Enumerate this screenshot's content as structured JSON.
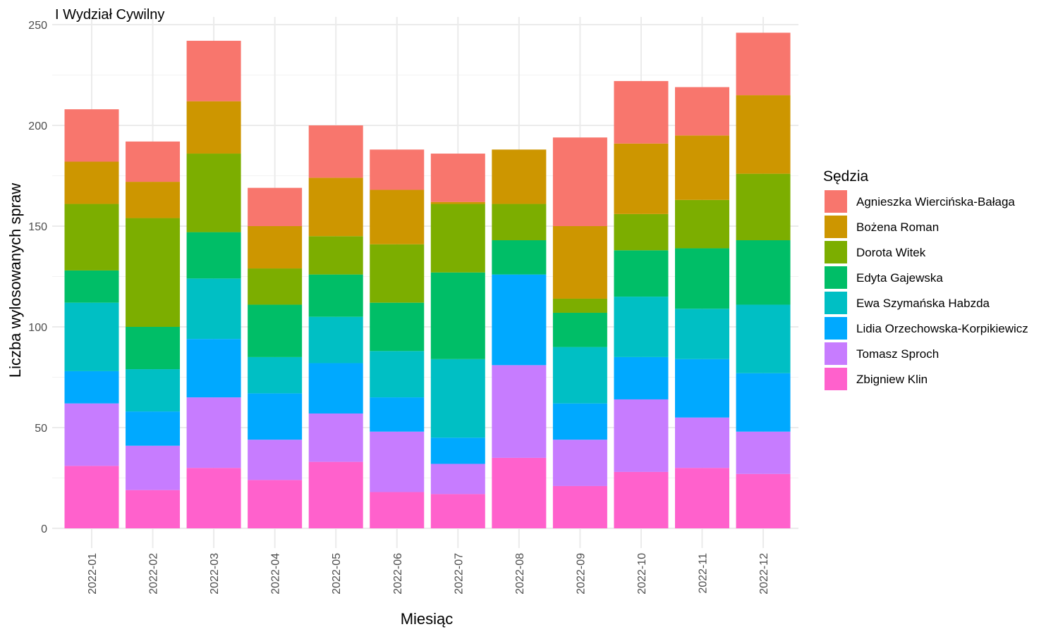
{
  "chart_data": {
    "type": "bar",
    "stacked": true,
    "title": "I Wydział Cywilny",
    "xlabel": "Miesiąc",
    "ylabel": "Liczba wylosowanych spraw",
    "ylim": [
      0,
      250
    ],
    "yticks": [
      0,
      50,
      100,
      150,
      200,
      250
    ],
    "grid": true,
    "legend_title": "Sędzia",
    "legend_position": "right",
    "categories": [
      "2022-01",
      "2022-02",
      "2022-03",
      "2022-04",
      "2022-05",
      "2022-06",
      "2022-07",
      "2022-08",
      "2022-09",
      "2022-10",
      "2022-11",
      "2022-12"
    ],
    "series": [
      {
        "name": "Agnieszka Wiercińska-Bałaga",
        "color": "#F8766D",
        "values": [
          26,
          20,
          30,
          19,
          26,
          20,
          24,
          0,
          44,
          31,
          24,
          31
        ]
      },
      {
        "name": "Bożena Roman",
        "color": "#CD9600",
        "values": [
          21,
          18,
          26,
          21,
          29,
          27,
          1,
          27,
          36,
          35,
          32,
          39
        ]
      },
      {
        "name": "Dorota Witek",
        "color": "#7CAE00",
        "values": [
          33,
          54,
          39,
          18,
          19,
          29,
          34,
          18,
          7,
          18,
          24,
          33
        ]
      },
      {
        "name": "Edyta Gajewska",
        "color": "#00BE67",
        "values": [
          16,
          21,
          23,
          26,
          21,
          24,
          43,
          17,
          17,
          23,
          30,
          32
        ]
      },
      {
        "name": "Ewa Szymańska Habzda",
        "color": "#00BFC4",
        "values": [
          34,
          21,
          30,
          18,
          23,
          23,
          39,
          0,
          28,
          30,
          25,
          34
        ]
      },
      {
        "name": "Lidia Orzechowska-Korpikiewicz",
        "color": "#00A9FF",
        "values": [
          16,
          17,
          29,
          23,
          25,
          17,
          13,
          45,
          18,
          21,
          29,
          29
        ]
      },
      {
        "name": "Tomasz Sproch",
        "color": "#C77CFF",
        "values": [
          31,
          22,
          35,
          20,
          24,
          30,
          15,
          46,
          23,
          36,
          25,
          21
        ]
      },
      {
        "name": "Zbigniew Klin",
        "color": "#FF61CC",
        "values": [
          31,
          19,
          30,
          24,
          33,
          18,
          17,
          35,
          21,
          28,
          30,
          27
        ]
      }
    ]
  }
}
